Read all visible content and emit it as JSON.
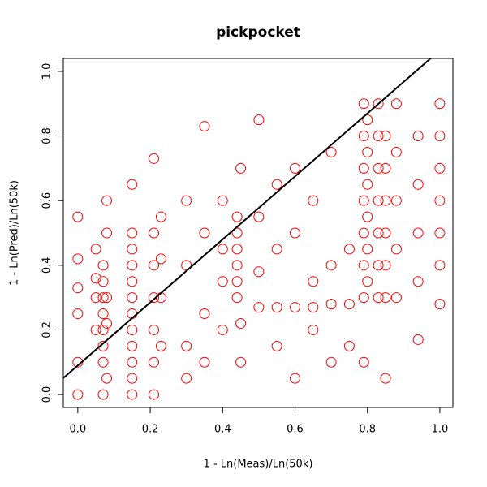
{
  "chart_data": {
    "type": "scatter",
    "title": "pickpocket",
    "x_label": "1 - Ln(Meas)/Ln(50k)",
    "y_label": "1 - Ln(Pred)/Ln(50k)",
    "color": "#ff0000",
    "xlim": [
      -0.04,
      1.036
    ],
    "ylim": [
      -0.04,
      1.04
    ],
    "xticks": [
      {
        "value": 0,
        "label": "0.0"
      },
      0.2,
      0.4,
      0.6,
      0.8,
      {
        "value": 1,
        "label": "1.0"
      }
    ],
    "yticks": [
      {
        "value": 0,
        "label": "0.0"
      },
      0.2,
      0.4,
      0.6,
      0.8,
      {
        "value": 1,
        "label": "1.0"
      }
    ],
    "line": {
      "intercept": 0.09,
      "slope": 0.975,
      "color": "#000000"
    },
    "x": [
      0,
      0,
      0,
      0,
      0,
      0,
      0.05,
      0.05,
      0.05,
      0.05,
      0.07,
      0.07,
      0.07,
      0.07,
      0.07,
      0.07,
      0.07,
      0.07,
      0.08,
      0.08,
      0.08,
      0.08,
      0.08,
      0.15,
      0.15,
      0.15,
      0.15,
      0.15,
      0.15,
      0.15,
      0.15,
      0.15,
      0.15,
      0.15,
      0.15,
      0.21,
      0.21,
      0.21,
      0.21,
      0.21,
      0.21,
      0.21,
      0.23,
      0.23,
      0.23,
      0.23,
      0.3,
      0.3,
      0.3,
      0.3,
      0.35,
      0.35,
      0.35,
      0.35,
      0.4,
      0.4,
      0.4,
      0.4,
      0.44,
      0.44,
      0.44,
      0.44,
      0.44,
      0.44,
      0.45,
      0.45,
      0.45,
      0.5,
      0.5,
      0.5,
      0.5,
      0.55,
      0.55,
      0.55,
      0.55,
      0.6,
      0.6,
      0.6,
      0.6,
      0.65,
      0.65,
      0.65,
      0.65,
      0.7,
      0.7,
      0.7,
      0.7,
      0.75,
      0.75,
      0.75,
      0.79,
      0.79,
      0.79,
      0.79,
      0.79,
      0.79,
      0.79,
      0.79,
      0.8,
      0.8,
      0.8,
      0.8,
      0.8,
      0.8,
      0.83,
      0.83,
      0.83,
      0.83,
      0.83,
      0.83,
      0.83,
      0.85,
      0.85,
      0.85,
      0.85,
      0.85,
      0.85,
      0.85,
      0.88,
      0.88,
      0.88,
      0.88,
      0.88,
      0.94,
      0.94,
      0.94,
      0.94,
      0.94,
      1,
      1,
      1,
      1,
      1,
      1,
      1
    ],
    "values": [
      0,
      0.25,
      0.33,
      0.42,
      0.55,
      0.1,
      0.3,
      0.36,
      0.2,
      0.45,
      0,
      0.1,
      0.2,
      0.25,
      0.3,
      0.35,
      0.4,
      0.15,
      0.05,
      0.22,
      0.3,
      0.5,
      0.6,
      0,
      0.05,
      0.1,
      0.15,
      0.2,
      0.25,
      0.3,
      0.35,
      0.4,
      0.45,
      0.5,
      0.65,
      0,
      0.1,
      0.2,
      0.3,
      0.4,
      0.5,
      0.73,
      0.15,
      0.3,
      0.42,
      0.55,
      0.15,
      0.4,
      0.6,
      0.05,
      0.25,
      0.5,
      0.83,
      0.1,
      0.2,
      0.35,
      0.45,
      0.6,
      0.3,
      0.35,
      0.4,
      0.45,
      0.5,
      0.55,
      0.22,
      0.7,
      0.1,
      0.27,
      0.38,
      0.55,
      0.85,
      0.27,
      0.45,
      0.65,
      0.15,
      0.27,
      0.5,
      0.7,
      0.05,
      0.27,
      0.35,
      0.6,
      0.2,
      0.28,
      0.4,
      0.75,
      0.1,
      0.28,
      0.45,
      0.15,
      0.3,
      0.4,
      0.5,
      0.6,
      0.7,
      0.8,
      0.9,
      0.1,
      0.35,
      0.45,
      0.55,
      0.65,
      0.75,
      0.85,
      0.3,
      0.4,
      0.5,
      0.6,
      0.7,
      0.8,
      0.9,
      0.3,
      0.4,
      0.5,
      0.6,
      0.7,
      0.8,
      0.05,
      0.3,
      0.45,
      0.6,
      0.75,
      0.9,
      0.17,
      0.35,
      0.5,
      0.65,
      0.8,
      0.28,
      0.4,
      0.5,
      0.6,
      0.7,
      0.8,
      0.9
    ]
  }
}
